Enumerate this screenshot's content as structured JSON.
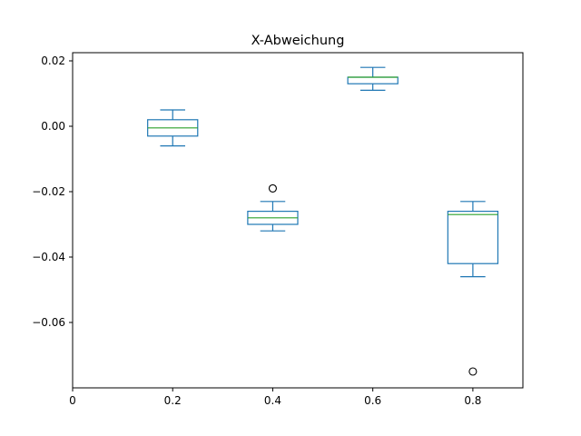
{
  "chart_data": {
    "type": "box",
    "title": "X-Abweichung",
    "xlabel": "",
    "ylabel": "",
    "xlim": [
      0,
      0.9
    ],
    "ylim": [
      -0.08,
      0.0225
    ],
    "x_ticks": [
      0,
      0.2,
      0.4,
      0.6,
      0.8
    ],
    "x_tick_labels": [
      "0",
      "0.2",
      "0.4",
      "0.6",
      "0.8"
    ],
    "y_ticks": [
      0.02,
      0.0,
      -0.02,
      -0.04,
      -0.06
    ],
    "y_tick_labels": [
      "0.02",
      "0.00",
      "−0.02",
      "−0.04",
      "−0.06"
    ],
    "grid": false,
    "box_color": "#1f77b4",
    "median_color": "#2ca02c",
    "boxes": [
      {
        "x": 0.2,
        "whisker_low": -0.006,
        "q1": -0.003,
        "median": -0.0005,
        "q3": 0.002,
        "whisker_high": 0.005,
        "outliers": []
      },
      {
        "x": 0.4,
        "whisker_low": -0.032,
        "q1": -0.03,
        "median": -0.028,
        "q3": -0.026,
        "whisker_high": -0.023,
        "outliers": [
          -0.019
        ]
      },
      {
        "x": 0.6,
        "whisker_low": 0.011,
        "q1": 0.013,
        "median": 0.015,
        "q3": 0.015,
        "whisker_high": 0.018,
        "outliers": []
      },
      {
        "x": 0.8,
        "whisker_low": -0.046,
        "q1": -0.042,
        "median": -0.027,
        "q3": -0.026,
        "whisker_high": -0.023,
        "outliers": [
          -0.075
        ]
      }
    ]
  }
}
